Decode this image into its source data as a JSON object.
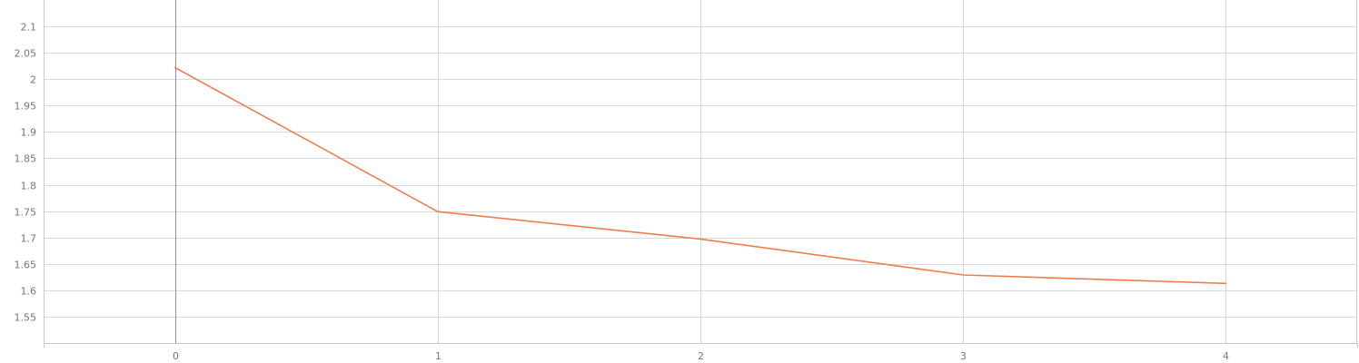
{
  "chart_data": {
    "type": "line",
    "title": "",
    "xlabel": "",
    "ylabel": "",
    "x": [
      0,
      1,
      2,
      3,
      4
    ],
    "series": [
      {
        "values": [
          2.022,
          1.749,
          1.697,
          1.629,
          1.613
        ],
        "color": "#f07c4e"
      }
    ],
    "xlim": [
      -0.5,
      4.5
    ],
    "ylim": [
      1.5,
      2.15
    ],
    "xticks": [
      0,
      1,
      2,
      3,
      4
    ],
    "yticks": [
      1.55,
      1.6,
      1.65,
      1.7,
      1.75,
      1.8,
      1.85,
      1.9,
      1.95,
      2,
      2.05,
      2.1
    ],
    "xtick_labels": [
      "0",
      "1",
      "2",
      "3",
      "4"
    ],
    "ytick_labels": [
      "1.55",
      "1.6",
      "1.65",
      "1.7",
      "1.75",
      "1.8",
      "1.85",
      "1.9",
      "1.95",
      "2",
      "2.05",
      "2.1"
    ],
    "grid": true,
    "legend": "none",
    "colors": {
      "grid": "#d9d9d9",
      "axis": "#c8c8c8",
      "zero_line": "#8f8f8f",
      "tick_text": "#777777"
    }
  }
}
